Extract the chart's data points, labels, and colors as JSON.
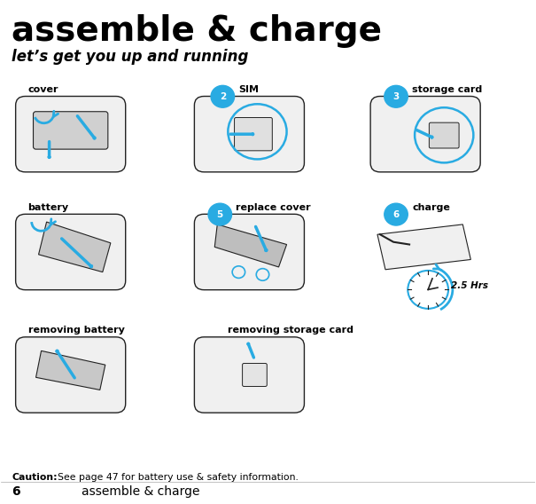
{
  "title": "assemble & charge",
  "subtitle": "let’s get you up and running",
  "bg_color": "#ffffff",
  "title_fontsize": 28,
  "subtitle_fontsize": 12,
  "caution_text": "See page 47 for battery use & safety information.",
  "caution_bold": "Caution:",
  "footer_number": "6",
  "footer_text": "assemble & charge",
  "accent_color": "#29ABE2",
  "text_color": "#000000",
  "phone_color": "#f0f0f0",
  "phone_outline": "#222222",
  "arrow_color": "#29ABE2"
}
